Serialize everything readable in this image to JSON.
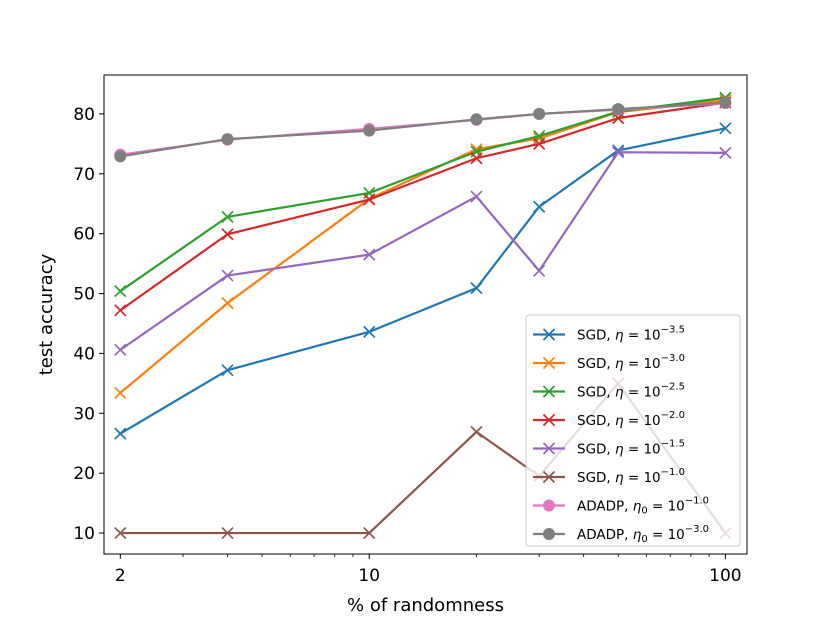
{
  "chart_data": {
    "type": "line",
    "xscale": "log",
    "x": [
      2,
      4,
      10,
      20,
      30,
      50,
      100
    ],
    "xticks": [
      2,
      10,
      100
    ],
    "xlim": [
      1.8,
      115
    ],
    "ylim": [
      6.5,
      86.5
    ],
    "yticks": [
      10,
      20,
      30,
      40,
      50,
      60,
      70,
      80
    ],
    "xlabel": "% of randomness",
    "ylabel": "test accuracy",
    "legend_position": "lower-right",
    "series": [
      {
        "name": "SGD, η = 10^{-3.5}",
        "legend_prefix": "SGD, ",
        "legend_symbol": "η",
        "legend_base": " = 10",
        "legend_exp": "−3.5",
        "color": "#1f77b4",
        "marker": "x",
        "values": [
          26.6,
          37.2,
          43.6,
          50.9,
          64.5,
          73.9,
          77.6
        ]
      },
      {
        "name": "SGD, η = 10^{-3.0}",
        "legend_prefix": "SGD, ",
        "legend_symbol": "η",
        "legend_base": " = 10",
        "legend_exp": "−3.0",
        "color": "#ff7f0e",
        "marker": "x",
        "values": [
          33.4,
          48.4,
          65.8,
          74.1,
          75.9,
          80.3,
          82.3
        ]
      },
      {
        "name": "SGD, η = 10^{-2.5}",
        "legend_prefix": "SGD, ",
        "legend_symbol": "η",
        "legend_base": " = 10",
        "legend_exp": "−2.5",
        "color": "#2ca02c",
        "marker": "x",
        "values": [
          50.4,
          62.8,
          66.8,
          73.7,
          76.3,
          80.4,
          82.7
        ]
      },
      {
        "name": "SGD, η = 10^{-2.0}",
        "legend_prefix": "SGD, ",
        "legend_symbol": "η",
        "legend_base": " = 10",
        "legend_exp": "−2.0",
        "color": "#d62728",
        "marker": "x",
        "values": [
          47.2,
          59.9,
          65.7,
          72.6,
          75.0,
          79.3,
          81.9
        ]
      },
      {
        "name": "SGD, η = 10^{-1.5}",
        "legend_prefix": "SGD, ",
        "legend_symbol": "η",
        "legend_base": " = 10",
        "legend_exp": "−1.5",
        "color": "#9467bd",
        "marker": "x",
        "values": [
          40.6,
          53.0,
          56.5,
          66.2,
          53.8,
          73.6,
          73.5
        ]
      },
      {
        "name": "SGD, η = 10^{-1.0}",
        "legend_prefix": "SGD, ",
        "legend_symbol": "η",
        "legend_base": " = 10",
        "legend_exp": "−1.0",
        "color": "#8c564b",
        "marker": "x",
        "values": [
          10.0,
          10.0,
          10.0,
          26.9,
          19.5,
          35.0,
          10.0
        ]
      },
      {
        "name": "ADADP, η0 = 10^{-1.0}",
        "legend_prefix": "ADADP, ",
        "legend_symbol": "η",
        "legend_sub": "0",
        "legend_base": " = 10",
        "legend_exp": "−1.0",
        "color": "#e377c2",
        "marker": "o",
        "values": [
          73.2,
          75.7,
          77.5,
          79.0,
          80.0,
          80.7,
          81.8
        ]
      },
      {
        "name": "ADADP, η0 = 10^{-3.0}",
        "legend_prefix": "ADADP, ",
        "legend_symbol": "η",
        "legend_sub": "0",
        "legend_base": " = 10",
        "legend_exp": "−3.0",
        "color": "#7f7f7f",
        "marker": "o",
        "values": [
          72.9,
          75.8,
          77.2,
          79.1,
          80.0,
          80.8,
          81.9
        ]
      }
    ]
  }
}
